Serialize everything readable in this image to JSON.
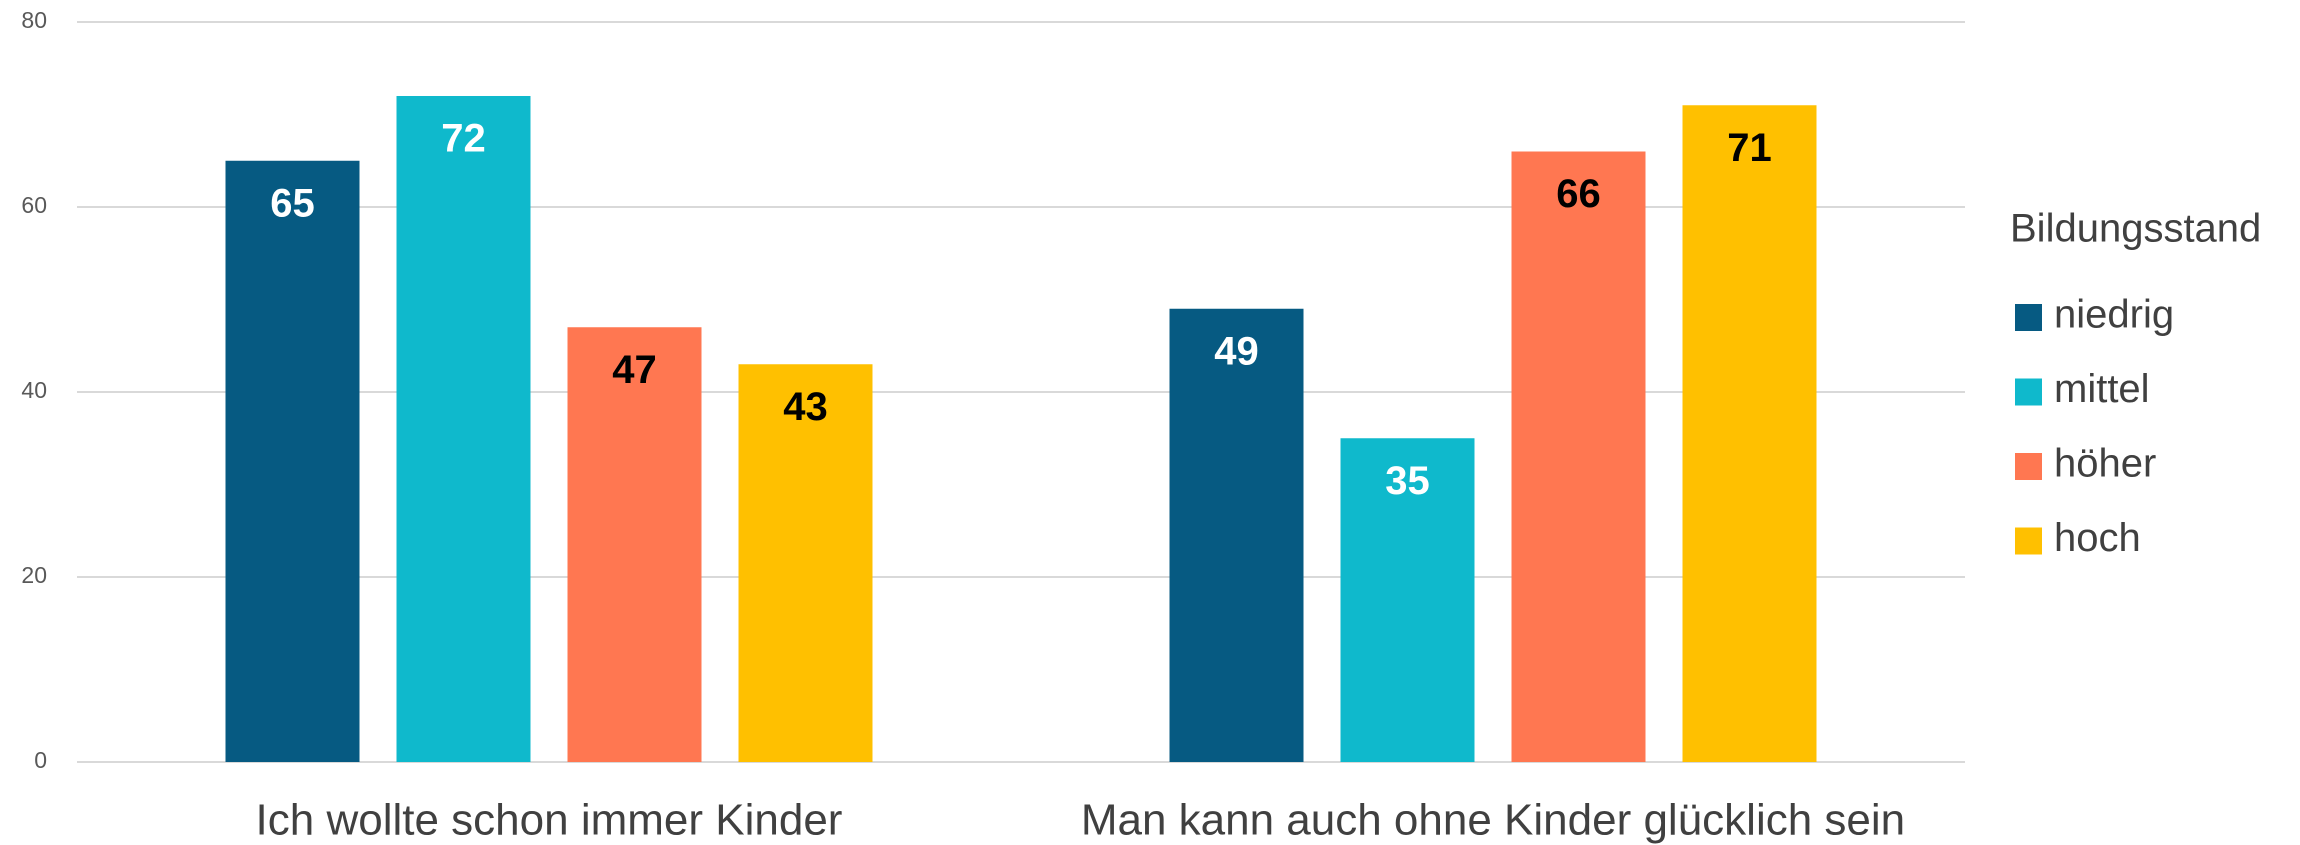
{
  "chart_data": {
    "type": "bar",
    "categories": [
      "Ich wollte schon immer Kinder",
      "Man kann auch ohne Kinder glücklich sein"
    ],
    "series": [
      {
        "name": "niedrig",
        "color": "#065a82",
        "label_color": "#ffffff",
        "values": [
          65,
          49
        ]
      },
      {
        "name": "mittel",
        "color": "#0fb9cc",
        "label_color": "#ffffff",
        "values": [
          72,
          35
        ]
      },
      {
        "name": "höher",
        "color": "#ff7751",
        "label_color": "#000000",
        "values": [
          47,
          66
        ]
      },
      {
        "name": "hoch",
        "color": "#ffc000",
        "label_color": "#000000",
        "values": [
          43,
          71
        ]
      }
    ],
    "legend_title": "Bildungsstand",
    "legend": "right",
    "ylim": [
      0,
      80
    ],
    "yticks": [
      0,
      20,
      40,
      60,
      80
    ],
    "grid": true
  }
}
